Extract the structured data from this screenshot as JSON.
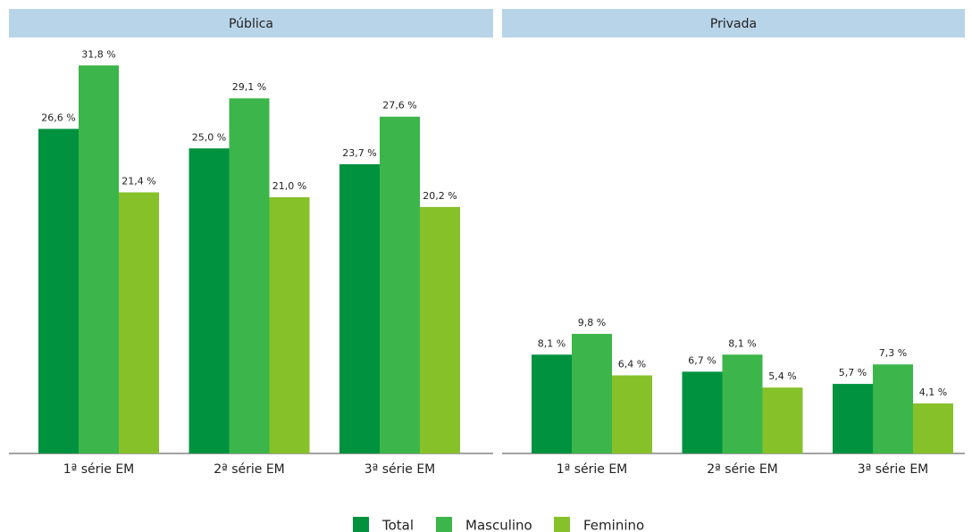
{
  "chart_data": [
    {
      "type": "bar",
      "title": "Pública",
      "categories": [
        "1ª série EM",
        "2ª série EM",
        "3ª série EM"
      ],
      "series": [
        {
          "name": "Total",
          "color": "#00923f",
          "values": [
            26.6,
            25.0,
            23.7
          ],
          "value_labels": [
            "26,6 %",
            "25,0 %",
            "23,7 %"
          ]
        },
        {
          "name": "Masculino",
          "color": "#3cb54a",
          "values": [
            31.8,
            29.1,
            27.6
          ],
          "value_labels": [
            "31,8 %",
            "29,1 %",
            "27,6 %"
          ]
        },
        {
          "name": "Feminino",
          "color": "#86c12a",
          "values": [
            21.4,
            21.0,
            20.2
          ],
          "value_labels": [
            "21,4 %",
            "21,0 %",
            "20,2 %"
          ]
        }
      ]
    },
    {
      "type": "bar",
      "title": "Privada",
      "categories": [
        "1ª série EM",
        "2ª série EM",
        "3ª série EM"
      ],
      "series": [
        {
          "name": "Total",
          "color": "#00923f",
          "values": [
            8.1,
            6.7,
            5.7
          ],
          "value_labels": [
            "8,1 %",
            "6,7 %",
            "5,7 %"
          ]
        },
        {
          "name": "Masculino",
          "color": "#3cb54a",
          "values": [
            9.8,
            8.1,
            7.3
          ],
          "value_labels": [
            "9,8 %",
            "8,1 %",
            "7,3 %"
          ]
        },
        {
          "name": "Feminino",
          "color": "#86c12a",
          "values": [
            6.4,
            5.4,
            4.1
          ],
          "value_labels": [
            "6,4 %",
            "5,4 %",
            "4,1 %"
          ]
        }
      ]
    }
  ]
}
